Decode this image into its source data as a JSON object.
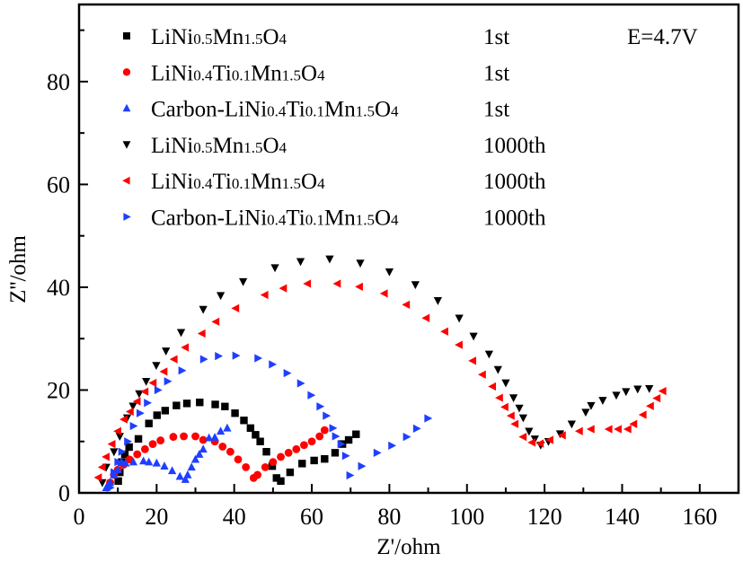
{
  "chart_data": {
    "type": "scatter",
    "title": "",
    "xlabel": "Z'/ohm",
    "ylabel": "Z''/ohm",
    "xlim": [
      0,
      170
    ],
    "ylim": [
      0,
      95
    ],
    "xticks": [
      0,
      20,
      40,
      60,
      80,
      100,
      120,
      140,
      160
    ],
    "yticks": [
      0,
      20,
      40,
      60,
      80
    ],
    "grid": false,
    "legend_position": "top-left",
    "annotation": "E=4.7V",
    "series": [
      {
        "name": "LiNi0.5Mn1.5O4",
        "cycle": "1st",
        "marker": "square",
        "color": "#000000",
        "x": [
          10.1,
          10.5,
          11,
          11.8,
          12.9,
          15.3,
          18,
          20.1,
          22.2,
          25.1,
          27.8,
          31.1,
          35.1,
          37.6,
          40.2,
          42.5,
          44.2,
          45.5,
          46.7,
          48.3,
          49.8,
          50.9,
          52,
          54.4,
          57.5,
          60.6,
          63.3,
          66,
          67.9,
          69.5,
          71.4
        ],
        "y": [
          2.3,
          4,
          6,
          7.5,
          8.9,
          10.5,
          13.5,
          15.1,
          16,
          17,
          17.4,
          17.6,
          17.2,
          16.8,
          15.5,
          14.1,
          12.6,
          11.3,
          10,
          8,
          5.2,
          2.9,
          2.3,
          4,
          5.7,
          6.3,
          6.6,
          7.8,
          9.5,
          10.3,
          11.4
        ]
      },
      {
        "name": "LiNi0.4Ti0.1Mn1.5O4",
        "cycle": "1st",
        "marker": "circle",
        "color": "#ff0000",
        "x": [
          8,
          9,
          10,
          11.5,
          13,
          15,
          17,
          19,
          21,
          24.3,
          27,
          30,
          32,
          35,
          37,
          39,
          41,
          43,
          45,
          46,
          48,
          50,
          52,
          54,
          56,
          58,
          60,
          62,
          63.3
        ],
        "y": [
          2,
          3.5,
          4.5,
          5.5,
          6.5,
          7.5,
          8.5,
          9.5,
          10.2,
          10.9,
          11,
          11,
          10.3,
          10,
          9,
          8,
          6.5,
          5,
          2.9,
          3.5,
          5,
          6,
          7,
          7.8,
          8.5,
          9.3,
          10,
          11,
          12.2
        ]
      },
      {
        "name": "Carbon-LiNi0.4Ti0.1Mn1.5O4",
        "cycle": "1st",
        "marker": "triangle-up",
        "color": "#1f3fff",
        "x": [
          7,
          8,
          9,
          10,
          10.9,
          12,
          14,
          16.6,
          18,
          20,
          22,
          24,
          26,
          27.4,
          28,
          29,
          30,
          31,
          32,
          33.5,
          35,
          36.5,
          38.2
        ],
        "y": [
          1,
          2,
          3.5,
          4.5,
          6,
          5.8,
          6,
          6.2,
          6,
          5.8,
          5.2,
          4.3,
          3.2,
          2.6,
          3.5,
          5,
          6.5,
          7.5,
          8.5,
          10.7,
          10.8,
          12,
          12.6
        ]
      },
      {
        "name": "LiNi0.5Mn1.5O4",
        "cycle": "1000th",
        "marker": "triangle-down",
        "color": "#000000",
        "x": [
          6,
          7,
          9,
          10.5,
          12.4,
          13.9,
          15.5,
          17.3,
          19.9,
          22.4,
          26.3,
          32,
          36.5,
          42.3,
          50.5,
          57.1,
          64.6,
          72.5,
          80,
          86.7,
          92.5,
          98,
          101.7,
          105.7,
          108,
          110,
          112,
          113.5,
          114.5,
          116,
          117.5,
          119,
          121,
          124,
          127,
          130.6,
          132,
          135,
          138.5,
          141,
          144,
          147
        ],
        "y": [
          2,
          5,
          8,
          11,
          14.6,
          16.9,
          19.3,
          21.7,
          24.8,
          27.6,
          31.2,
          35.7,
          38.4,
          41.1,
          43.8,
          45,
          45.5,
          44.7,
          43,
          40.5,
          37.4,
          34,
          30.5,
          27,
          24,
          21.4,
          18.5,
          16.5,
          14.6,
          12,
          10.5,
          9.3,
          10,
          11.5,
          13.4,
          15.7,
          17,
          18,
          19,
          19.7,
          20.2,
          20.3
        ]
      },
      {
        "name": "LiNi0.4Ti0.1Mn1.5O4",
        "cycle": "1000th",
        "marker": "triangle-left",
        "color": "#ff0000",
        "x": [
          5,
          6,
          7,
          8.5,
          10,
          11.6,
          13.2,
          15,
          17,
          19.1,
          21.9,
          24.5,
          27.4,
          31.7,
          35.3,
          40.4,
          47.9,
          52.7,
          58.9,
          66.6,
          72.3,
          78.7,
          84.4,
          89.5,
          94.3,
          98,
          101.5,
          104,
          106.6,
          108.4,
          109.8,
          111.4,
          112.4,
          114.5,
          116.8,
          118.9,
          121.4,
          124.6,
          129,
          132,
          136.6,
          139,
          141.5,
          143,
          145.4,
          147.3,
          149,
          150.5
        ],
        "y": [
          3,
          5,
          7,
          9.5,
          12,
          14.3,
          15.8,
          17.8,
          19.7,
          21.4,
          23.6,
          26,
          28.3,
          31,
          33.3,
          35.9,
          38.5,
          39.8,
          40.7,
          40.7,
          40.1,
          38.8,
          36.6,
          34,
          31.4,
          28.8,
          25.7,
          23,
          20.7,
          18.5,
          16.7,
          15,
          13.4,
          10.9,
          9.8,
          9.6,
          10.3,
          11.2,
          12,
          12.4,
          12.4,
          12.4,
          12.4,
          13.4,
          15.2,
          16.9,
          18.4,
          19.8
        ]
      },
      {
        "name": "Carbon-LiNi0.4Ti0.1Mn1.5O4",
        "cycle": "1000th",
        "marker": "triangle-right",
        "color": "#1f3fff",
        "x": [
          8,
          9,
          10,
          11,
          12.5,
          14,
          15.7,
          17.6,
          20.3,
          22.8,
          26.5,
          32.1,
          35.9,
          40.4,
          46.1,
          49.8,
          53.6,
          57.1,
          59.8,
          62.1,
          63.7,
          65.4,
          66.1,
          67.5,
          68.7,
          69.8,
          72.8,
          76.8,
          80.6,
          84.4,
          87,
          89.9
        ],
        "y": [
          1,
          4,
          6,
          8,
          10,
          13,
          15.5,
          17.5,
          20,
          21.7,
          23.8,
          26,
          26.6,
          26.7,
          26.2,
          25,
          23.3,
          21.3,
          19,
          16.8,
          15,
          12.6,
          11,
          9.5,
          7.2,
          3.4,
          5.2,
          7.8,
          9.2,
          10.9,
          12.5,
          14.5
        ]
      }
    ]
  }
}
